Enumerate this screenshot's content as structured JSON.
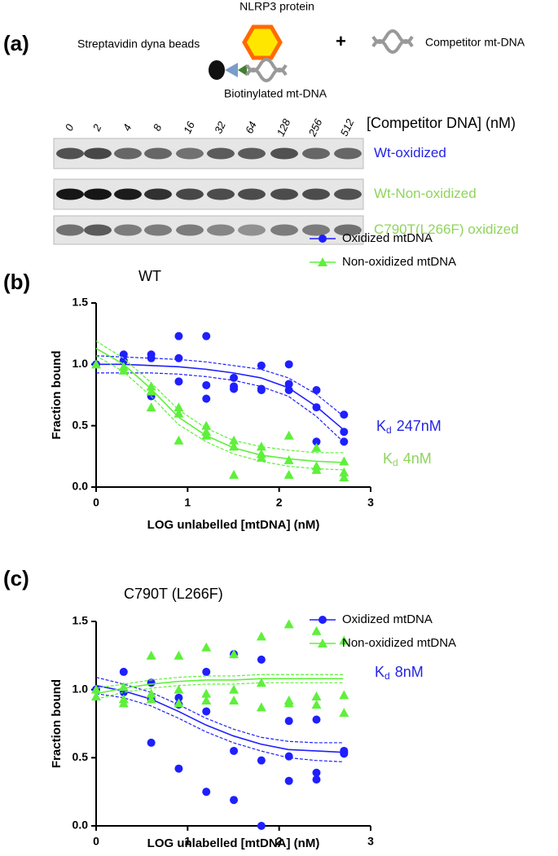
{
  "panel_a": {
    "label": "(a)",
    "protein": "NLRP3 protein",
    "beads": "Streptavidin dyna beads",
    "plus": "+",
    "competitor": "Competitor mt-DNA",
    "biotinylated": "Biotinylated mt-DNA",
    "lanes": [
      "0",
      "2",
      "4",
      "8",
      "16",
      "32",
      "64",
      "128",
      "256",
      "512"
    ],
    "lanes_title": "[Competitor DNA] (nM)",
    "rows": [
      {
        "label": "Wt-oxidized",
        "color": "#2424e6"
      },
      {
        "label": "Wt-Non-oxidized",
        "color": "#8fd45c"
      },
      {
        "label": "C790T(L266F) oxidized",
        "color": "#8fd45c"
      }
    ]
  },
  "chart_data": [
    {
      "type": "scatter",
      "panel": "(b)",
      "title": "WT",
      "x_label": "LOG unlabelled [mtDNA] (nM)",
      "y_label": "Fraction bound",
      "xlim": [
        0,
        3
      ],
      "ylim": [
        0,
        1.5
      ],
      "xticks": [
        0,
        1,
        2,
        3
      ],
      "yticks": [
        {
          "value": 0,
          "label": "0.0"
        },
        0.5,
        {
          "value": 1,
          "label": "1.0"
        },
        1.5
      ],
      "legend": "right",
      "series": [
        {
          "name": "Oxidized mtDNA",
          "color": "#1f1fff",
          "marker": "circle",
          "x": [
            0,
            0.301,
            0.301,
            0.602,
            0.602,
            0.602,
            0.903,
            0.903,
            0.903,
            1.204,
            1.204,
            1.204,
            1.505,
            1.505,
            1.505,
            1.806,
            1.806,
            1.806,
            2.107,
            2.107,
            2.107,
            2.408,
            2.408,
            2.408,
            2.709,
            2.709,
            2.709
          ],
          "y": [
            1.0,
            1.08,
            1.03,
            1.08,
            1.05,
            0.74,
            1.23,
            1.05,
            0.86,
            1.23,
            0.83,
            0.72,
            0.89,
            0.82,
            0.8,
            0.99,
            0.8,
            0.79,
            1.0,
            0.84,
            0.79,
            0.79,
            0.65,
            0.37,
            0.59,
            0.45,
            0.37
          ],
          "fit_x": [
            0,
            0.3,
            0.6,
            0.9,
            1.2,
            1.5,
            1.8,
            2.1,
            2.4,
            2.7
          ],
          "fit": [
            1.0,
            1.0,
            0.99,
            0.98,
            0.96,
            0.93,
            0.89,
            0.81,
            0.66,
            0.47
          ],
          "ci_upper": [
            1.07,
            1.06,
            1.05,
            1.04,
            1.02,
            0.99,
            0.96,
            0.89,
            0.76,
            0.58
          ],
          "ci_lower": [
            0.93,
            0.93,
            0.93,
            0.92,
            0.9,
            0.87,
            0.82,
            0.74,
            0.58,
            0.37
          ]
        },
        {
          "name": "Non-oxidized mtDNA",
          "color": "#5ef03a",
          "marker": "triangle",
          "x": [
            0,
            0.301,
            0.301,
            0.602,
            0.602,
            0.602,
            0.903,
            0.903,
            0.903,
            1.204,
            1.204,
            1.204,
            1.505,
            1.505,
            1.505,
            1.806,
            1.806,
            1.806,
            2.107,
            2.107,
            2.107,
            2.408,
            2.408,
            2.408,
            2.709,
            2.709,
            2.709
          ],
          "y": [
            1.0,
            0.98,
            0.95,
            0.82,
            0.78,
            0.65,
            0.65,
            0.6,
            0.38,
            0.5,
            0.45,
            0.42,
            0.38,
            0.33,
            0.1,
            0.33,
            0.27,
            0.24,
            0.42,
            0.22,
            0.1,
            0.32,
            0.17,
            0.14,
            0.21,
            0.12,
            0.08
          ],
          "fit_x": [
            0,
            0.3,
            0.6,
            0.9,
            1.2,
            1.5,
            1.8,
            2.1,
            2.4,
            2.7
          ],
          "fit": [
            1.13,
            1.0,
            0.8,
            0.57,
            0.42,
            0.32,
            0.26,
            0.23,
            0.21,
            0.2
          ],
          "ci_upper": [
            1.19,
            1.05,
            0.85,
            0.63,
            0.48,
            0.38,
            0.33,
            0.3,
            0.28,
            0.28
          ],
          "ci_lower": [
            1.07,
            0.94,
            0.74,
            0.51,
            0.37,
            0.27,
            0.21,
            0.17,
            0.15,
            0.14
          ]
        }
      ],
      "annotations": [
        {
          "text": "K",
          "subscript": "d",
          "after": "247nM",
          "color": "#2424e6"
        },
        {
          "text": "K",
          "subscript": "d",
          "after": "4nM",
          "color": "#8fd45c"
        }
      ]
    },
    {
      "type": "scatter",
      "panel": "(c)",
      "title": "C790T (L266F)",
      "x_label": "LOG unlabelled [mtDNA] (nM)",
      "y_label": "Fraction bound",
      "xlim": [
        0,
        3
      ],
      "ylim": [
        0,
        1.5
      ],
      "xticks": [
        0,
        1,
        2,
        3
      ],
      "yticks": [
        {
          "value": 0,
          "label": "0.0"
        },
        0.5,
        {
          "value": 1,
          "label": "1.0"
        },
        1.5
      ],
      "legend": "right",
      "series": [
        {
          "name": "Oxidized mtDNA",
          "color": "#1f1fff",
          "marker": "circle",
          "x": [
            0,
            0.301,
            0.301,
            0.602,
            0.602,
            0.602,
            0.903,
            0.903,
            0.903,
            1.204,
            1.204,
            1.204,
            1.505,
            1.505,
            1.505,
            1.806,
            1.806,
            1.806,
            2.107,
            2.107,
            2.107,
            2.408,
            2.408,
            2.408,
            2.709,
            2.709,
            2.709
          ],
          "y": [
            1.0,
            1.13,
            0.98,
            1.05,
            0.93,
            0.61,
            0.94,
            0.89,
            0.42,
            1.13,
            0.84,
            0.25,
            1.26,
            0.55,
            0.19,
            1.22,
            0.48,
            0.0,
            0.77,
            0.51,
            0.33,
            0.78,
            0.39,
            0.34,
            0.55,
            0.54,
            0.53
          ],
          "fit_x": [
            0,
            0.3,
            0.6,
            0.9,
            1.2,
            1.5,
            1.8,
            2.1,
            2.4,
            2.7
          ],
          "fit": [
            1.03,
            0.99,
            0.93,
            0.84,
            0.74,
            0.66,
            0.6,
            0.56,
            0.55,
            0.54
          ],
          "ci_upper": [
            1.09,
            1.04,
            0.98,
            0.89,
            0.79,
            0.71,
            0.65,
            0.62,
            0.61,
            0.61
          ],
          "ci_lower": [
            0.97,
            0.94,
            0.88,
            0.79,
            0.69,
            0.61,
            0.55,
            0.5,
            0.48,
            0.47
          ]
        },
        {
          "name": "Non-oxidized mtDNA",
          "color": "#5ef03a",
          "marker": "triangle",
          "x": [
            0,
            0,
            0.301,
            0.301,
            0.301,
            0.602,
            0.602,
            0.602,
            0.903,
            0.903,
            0.903,
            1.204,
            1.204,
            1.204,
            1.505,
            1.505,
            1.505,
            1.806,
            1.806,
            1.806,
            2.107,
            2.107,
            2.107,
            2.408,
            2.408,
            2.408,
            2.709,
            2.709,
            2.709
          ],
          "y": [
            1.0,
            0.95,
            1.02,
            0.93,
            0.9,
            1.25,
            0.97,
            0.93,
            1.25,
            1.0,
            0.9,
            1.31,
            0.97,
            0.92,
            1.26,
            1.0,
            0.92,
            1.39,
            1.05,
            0.87,
            1.48,
            0.92,
            0.9,
            1.43,
            0.95,
            0.89,
            1.36,
            0.96,
            0.83
          ],
          "fit_x": [
            0,
            0.3,
            0.6,
            0.9,
            1.2,
            1.5,
            1.8,
            2.1,
            2.4,
            2.7
          ],
          "fit": [
            0.97,
            1.01,
            1.04,
            1.06,
            1.07,
            1.07,
            1.08,
            1.08,
            1.08,
            1.08
          ],
          "ci_upper": [
            1.01,
            1.04,
            1.07,
            1.09,
            1.1,
            1.1,
            1.11,
            1.11,
            1.11,
            1.11
          ],
          "ci_lower": [
            0.93,
            0.98,
            1.01,
            1.03,
            1.04,
            1.04,
            1.05,
            1.05,
            1.05,
            1.05
          ]
        }
      ],
      "annotations": [
        {
          "text": "K",
          "subscript": "d",
          "after": "8nM",
          "color": "#2424e6"
        }
      ]
    }
  ]
}
